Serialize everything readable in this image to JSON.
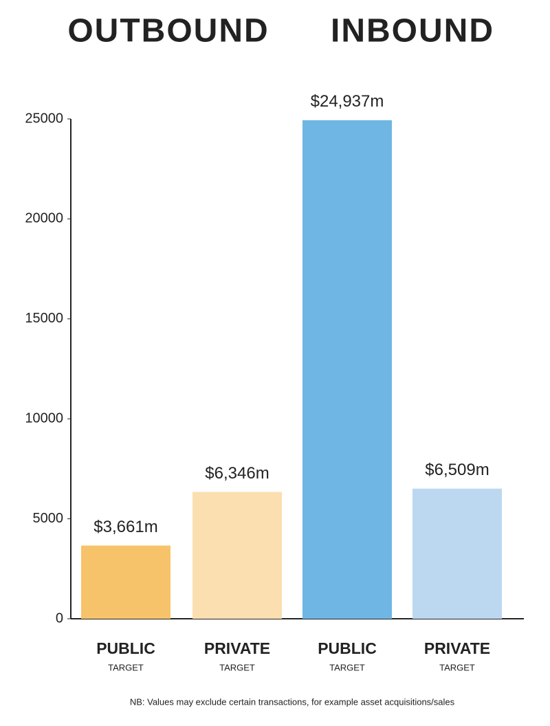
{
  "chart_data": {
    "type": "bar",
    "groups": [
      "OUTBOUND",
      "INBOUND"
    ],
    "categories": [
      "PUBLIC",
      "PRIVATE",
      "PUBLIC",
      "PRIVATE"
    ],
    "category_sublabels": [
      "TARGET",
      "TARGET",
      "TARGET",
      "TARGET"
    ],
    "values": [
      3661,
      6346,
      24937,
      6509
    ],
    "value_labels": [
      "$3,661m",
      "$6,346m",
      "$24,937m",
      "$6,509m"
    ],
    "colors": [
      "#f7c36a",
      "#fbdfb0",
      "#6fb6e4",
      "#bcd8f0"
    ],
    "ylim": [
      0,
      25000
    ],
    "yticks": [
      0,
      5000,
      10000,
      15000,
      20000,
      25000
    ],
    "grid": false,
    "note": "NB: Values may exclude certain transactions, for example asset acquisitions/sales"
  }
}
